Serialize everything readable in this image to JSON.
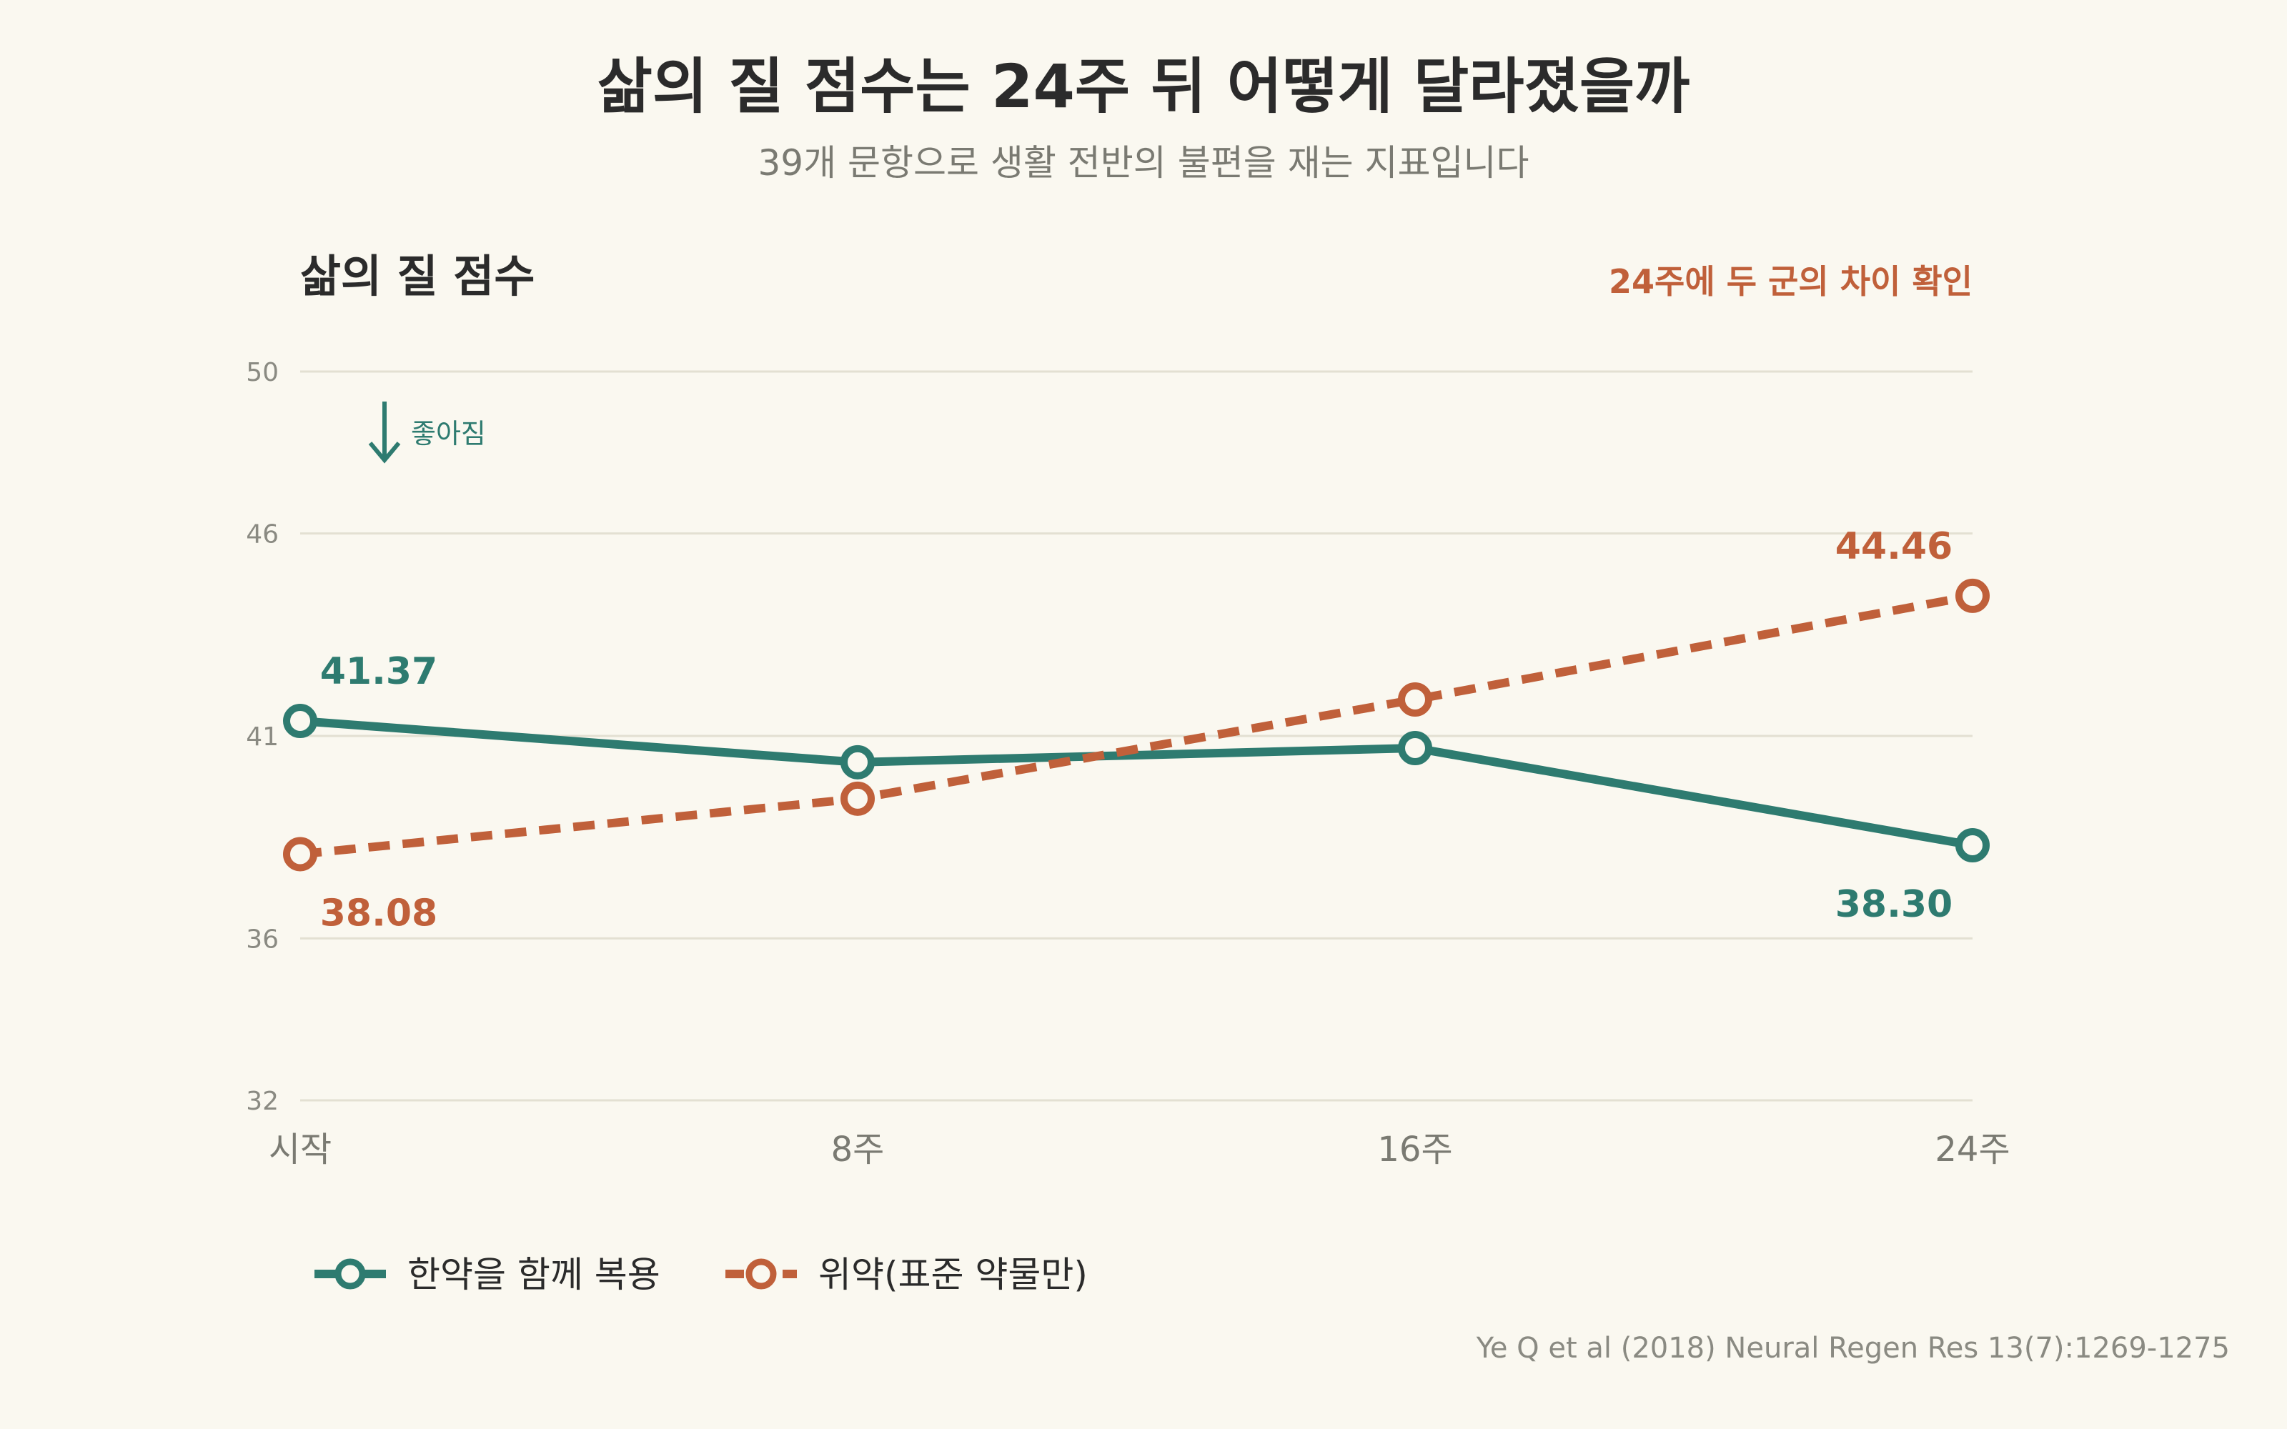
{
  "chart_data": {
    "type": "line",
    "title": "삶의 질 점수는 24주 뒤 어떻게 달라졌을까",
    "subtitle": "39개 문항으로 생활 전반의 불편을 재는 지표입니다",
    "ylabel": "삶의 질 점수",
    "annotation": "24주에 두 군의 차이 확인",
    "better_direction_label": "좋아짐",
    "categories": [
      "시작",
      "8주",
      "16주",
      "24주"
    ],
    "ylim": [
      32,
      50
    ],
    "yticks": [
      32,
      36,
      41,
      46,
      50
    ],
    "grid": true,
    "legend_position": "bottom-left",
    "series": [
      {
        "name": "한약을 함께 복용",
        "values": [
          41.37,
          40.35,
          40.7,
          38.3
        ],
        "labels": [
          "41.37",
          "",
          "",
          "38.30"
        ],
        "color": "#2e7b70",
        "style": "solid"
      },
      {
        "name": "위약(표준 약물만)",
        "values": [
          38.08,
          39.45,
          41.9,
          44.46
        ],
        "labels": [
          "38.08",
          "",
          "",
          "44.46"
        ],
        "color": "#c0603a",
        "style": "dashed"
      }
    ],
    "source": "Ye Q et al (2018) Neural Regen Res 13(7):1269-1275"
  }
}
